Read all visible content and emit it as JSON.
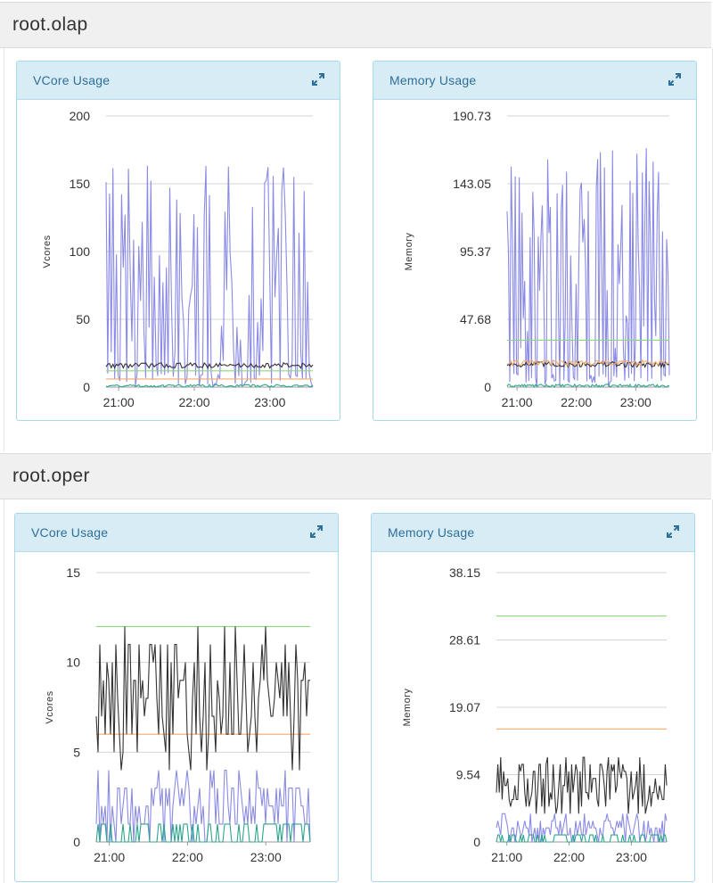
{
  "sections": [
    {
      "title": "root.olap"
    },
    {
      "title": "root.oper"
    }
  ],
  "icons": {
    "expand": "expand-arrows-icon"
  },
  "colors": {
    "purple": "#8a8ae6",
    "black": "#333333",
    "green": "#8fd67a",
    "orange": "#f5ab6b",
    "teal": "#2ca58d",
    "grid": "#d4d4d4"
  },
  "chart_data": [
    {
      "section": "root.olap",
      "title": "VCore Usage",
      "type": "line",
      "ylabel": "Vcores",
      "ylim": [
        0,
        200
      ],
      "yticks": [
        "0",
        "50",
        "100",
        "150",
        "200"
      ],
      "xticks": [
        "21:00",
        "22:00",
        "23:00"
      ],
      "xrange": [
        "20:50",
        "23:34"
      ],
      "series": [
        {
          "color": "#8a8ae6",
          "baseline": 18,
          "peak_max": 162,
          "spiky": true
        },
        {
          "color": "#333333",
          "baseline": 16,
          "noise": 2
        },
        {
          "color": "#8fd67a",
          "constant": 12
        },
        {
          "color": "#f5ab6b",
          "constant": 6
        },
        {
          "color": "#2ca58d",
          "baseline": 1,
          "noise": 1
        }
      ]
    },
    {
      "section": "root.olap",
      "title": "Memory Usage",
      "type": "line",
      "ylabel": "Memory",
      "ylim": [
        0,
        190.73
      ],
      "yticks": [
        "0",
        "47.68",
        "95.37",
        "143.05",
        "190.73"
      ],
      "xticks": [
        "21:00",
        "22:00",
        "23:00"
      ],
      "xrange": [
        "20:50",
        "23:34"
      ],
      "series": [
        {
          "color": "#8a8ae6",
          "baseline": 16,
          "peak_max": 168,
          "spiky": true
        },
        {
          "color": "#333333",
          "baseline": 16,
          "noise": 2
        },
        {
          "color": "#f5ab6b",
          "baseline": 17,
          "noise": 2
        },
        {
          "color": "#8fd67a",
          "constant": 33
        },
        {
          "color": "#2ca58d",
          "baseline": 1,
          "noise": 1
        }
      ]
    },
    {
      "section": "root.oper",
      "title": "VCore Usage",
      "type": "line",
      "ylabel": "Vcores",
      "ylim": [
        0,
        15
      ],
      "yticks": [
        "0",
        "5",
        "10",
        "15"
      ],
      "xticks": [
        "21:00",
        "22:00",
        "23:00"
      ],
      "xrange": [
        "20:50",
        "23:34"
      ],
      "series": [
        {
          "color": "#8fd67a",
          "constant": 12
        },
        {
          "color": "#f5ab6b",
          "constant": 6
        },
        {
          "color": "#333333",
          "min": 4,
          "max": 12
        },
        {
          "color": "#8a8ae6",
          "min": 0,
          "max": 4
        },
        {
          "color": "#2ca58d",
          "min": 0,
          "max": 1
        }
      ]
    },
    {
      "section": "root.oper",
      "title": "Memory Usage",
      "type": "line",
      "ylabel": "Memory",
      "ylim": [
        0,
        38.15
      ],
      "yticks": [
        "0",
        "9.54",
        "19.07",
        "28.61",
        "38.15"
      ],
      "xticks": [
        "21:00",
        "22:00",
        "23:00"
      ],
      "xrange": [
        "20:50",
        "23:34"
      ],
      "series": [
        {
          "color": "#8fd67a",
          "constant": 32
        },
        {
          "color": "#f5ab6b",
          "constant": 16
        },
        {
          "color": "#333333",
          "min": 4,
          "max": 12
        },
        {
          "color": "#8a8ae6",
          "min": 0,
          "max": 4
        },
        {
          "color": "#2ca58d",
          "min": 0,
          "max": 1
        }
      ]
    }
  ]
}
